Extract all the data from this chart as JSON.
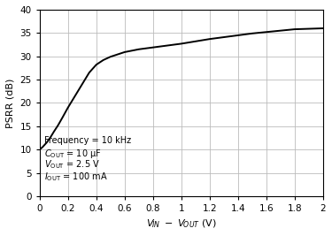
{
  "title": "",
  "xlim": [
    0,
    2.0
  ],
  "ylim": [
    0,
    40
  ],
  "xticks": [
    0,
    0.2,
    0.4,
    0.6,
    0.8,
    1.0,
    1.2,
    1.4,
    1.6,
    1.8,
    2.0
  ],
  "yticks": [
    0,
    5,
    10,
    15,
    20,
    25,
    30,
    35,
    40
  ],
  "curve_x": [
    0.0,
    0.02,
    0.05,
    0.08,
    0.1,
    0.13,
    0.16,
    0.2,
    0.25,
    0.3,
    0.35,
    0.4,
    0.45,
    0.5,
    0.6,
    0.7,
    0.8,
    0.9,
    1.0,
    1.1,
    1.2,
    1.3,
    1.4,
    1.5,
    1.6,
    1.7,
    1.8,
    1.9,
    2.0
  ],
  "curve_y": [
    10.0,
    10.5,
    11.5,
    12.8,
    13.8,
    15.2,
    16.8,
    19.0,
    21.5,
    24.0,
    26.5,
    28.2,
    29.2,
    29.9,
    30.9,
    31.5,
    31.9,
    32.3,
    32.7,
    33.2,
    33.7,
    34.1,
    34.5,
    34.9,
    35.2,
    35.5,
    35.8,
    35.9,
    36.0
  ],
  "line_color": "#000000",
  "grid_color": "#bbbbbb",
  "bg_color": "#ffffff",
  "annotation_fontsize": 7.0,
  "axis_fontsize": 8.0,
  "tick_fontsize": 7.5
}
